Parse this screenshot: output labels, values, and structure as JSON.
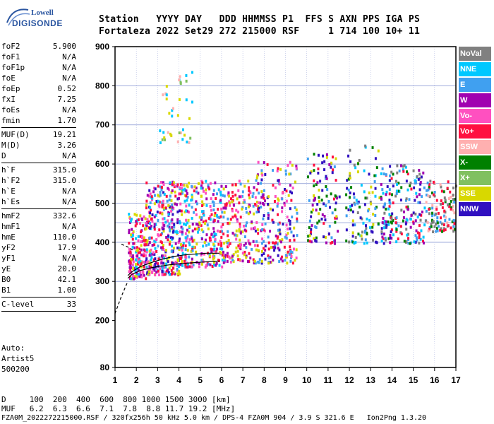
{
  "logo": {
    "line1": "Lowell",
    "line2": "DIGISONDE"
  },
  "header": {
    "row1": "Station   YYYY DAY   DDD HHMMSS P1  FFS S AXN PPS IGA PS",
    "row2": "Fortaleza 2022 Set29 272 215000 RSF     1 714 100 10+ 11"
  },
  "params": [
    {
      "label": "foF2",
      "value": "5.900"
    },
    {
      "label": "foF1",
      "value": "N/A"
    },
    {
      "label": "foF1p",
      "value": "N/A"
    },
    {
      "label": "foE",
      "value": "N/A"
    },
    {
      "label": "foEp",
      "value": "0.52"
    },
    {
      "label": "fxI",
      "value": "7.25"
    },
    {
      "label": "foEs",
      "value": "N/A"
    },
    {
      "label": "fmin",
      "value": "1.70"
    },
    {
      "sep": true
    },
    {
      "label": "MUF(D)",
      "value": "19.21"
    },
    {
      "label": "M(D)",
      "value": "3.26"
    },
    {
      "label": "D",
      "value": "N/A"
    },
    {
      "sep": true
    },
    {
      "label": "h`F",
      "value": "315.0"
    },
    {
      "label": "h`F2",
      "value": "315.0"
    },
    {
      "label": "h`E",
      "value": "N/A"
    },
    {
      "label": "h`Es",
      "value": "N/A"
    },
    {
      "sep": true
    },
    {
      "label": "hmF2",
      "value": "332.6"
    },
    {
      "label": "hmF1",
      "value": "N/A"
    },
    {
      "label": "hmE",
      "value": "110.0"
    },
    {
      "label": "yF2",
      "value": "17.9"
    },
    {
      "label": "yF1",
      "value": "N/A"
    },
    {
      "label": "yE",
      "value": "20.0"
    },
    {
      "label": "B0",
      "value": "42.1"
    },
    {
      "label": "B1",
      "value": "1.00"
    },
    {
      "sep": true
    },
    {
      "label": "C-level",
      "value": "33"
    },
    {
      "sep": true
    }
  ],
  "auto": {
    "line1": "Auto:",
    "line2": "Artist5",
    "line3": "500200"
  },
  "legend": [
    {
      "label": "NoVal",
      "bg": "#808080",
      "fg": "#ffffff"
    },
    {
      "label": "NNE",
      "bg": "#00c8ff",
      "fg": "#ffffff"
    },
    {
      "label": "E",
      "bg": "#40a0f0",
      "fg": "#ffffff"
    },
    {
      "label": "W",
      "bg": "#a000b0",
      "fg": "#ffffff"
    },
    {
      "label": "Vo-",
      "bg": "#ff50c0",
      "fg": "#ffffff"
    },
    {
      "label": "Vo+",
      "bg": "#ff1040",
      "fg": "#ffffff"
    },
    {
      "label": "SSW",
      "bg": "#ffb0b0",
      "fg": "#ffffff"
    },
    {
      "label": "X-",
      "bg": "#008000",
      "fg": "#ffffff"
    },
    {
      "label": "X+",
      "bg": "#80c060",
      "fg": "#ffffff"
    },
    {
      "label": "SSE",
      "bg": "#d8d800",
      "fg": "#ffffff"
    },
    {
      "label": "NNW",
      "bg": "#3010c0",
      "fg": "#ffffff"
    }
  ],
  "footer": {
    "d_row": "D     100  200  400  600  800 1000 1500 3000 [km]",
    "muf_row": "MUF   6.2  6.3  6.6  7.1  7.8  8.8 11.7 19.2 [MHz]",
    "info_row": "FZA0M_2022272215000.RSF / 320fx256h 50 kHz 5.0 km / DPS-4 FZA0M 904 / 3.9 S 321.6 E   Ion2Png 1.3.20"
  },
  "chart_data": {
    "type": "scatter",
    "title": "",
    "xlabel": "",
    "ylabel": "",
    "xlim": [
      1,
      17
    ],
    "ylim": [
      80,
      900
    ],
    "xticks": [
      1,
      2,
      3,
      4,
      5,
      6,
      7,
      8,
      9,
      10,
      11,
      12,
      13,
      14,
      15,
      16,
      17
    ],
    "yticks": [
      80,
      200,
      300,
      400,
      500,
      600,
      700,
      800,
      900
    ],
    "grid": true,
    "grid_y": [
      300,
      400,
      450,
      500,
      550,
      600,
      700,
      800
    ],
    "traces": [
      {
        "name": "lower",
        "style": "solid",
        "x": [
          1.6,
          1.8,
          2.2,
          2.8,
          3.5,
          4.2,
          5.0,
          5.9
        ],
        "y": [
          308,
          318,
          328,
          336,
          342,
          346,
          349,
          352
        ]
      },
      {
        "name": "profile",
        "style": "solid",
        "x": [
          1.6,
          1.8,
          2.2,
          2.8,
          3.3,
          3.8,
          4.3,
          4.8,
          5.3,
          5.9
        ],
        "y": [
          315,
          325,
          338,
          350,
          358,
          364,
          368,
          370,
          372,
          372
        ]
      },
      {
        "name": "extrapolation",
        "style": "dashed",
        "x": [
          1.0,
          1.3,
          1.6
        ],
        "y": [
          218,
          262,
          300
        ]
      },
      {
        "name": "upper",
        "style": "dashed",
        "x": [
          1.3,
          1.6,
          1.9
        ],
        "y": [
          395,
          388,
          378
        ]
      }
    ],
    "clusters": [
      {
        "x": [
          1.6,
          2.4
        ],
        "y": [
          310,
          480
        ],
        "colors": [
          "#ff1040",
          "#ff50c0",
          "#a000b0",
          "#00c8ff",
          "#d8d800"
        ],
        "n": 160
      },
      {
        "x": [
          2.4,
          4.0
        ],
        "y": [
          320,
          560
        ],
        "colors": [
          "#a000b0",
          "#ff50c0",
          "#ff1040",
          "#00c8ff",
          "#40a0f0",
          "#d8d800",
          "#3010c0"
        ],
        "n": 340
      },
      {
        "x": [
          4.0,
          6.0
        ],
        "y": [
          340,
          560
        ],
        "colors": [
          "#a000b0",
          "#ff50c0",
          "#ff1040",
          "#00c8ff",
          "#40a0f0",
          "#d8d800"
        ],
        "n": 300
      },
      {
        "x": [
          6.0,
          7.5
        ],
        "y": [
          350,
          560
        ],
        "colors": [
          "#a000b0",
          "#ff1040",
          "#ff50c0",
          "#d8d800",
          "#40a0f0"
        ],
        "n": 170
      },
      {
        "x": [
          7.5,
          9.5
        ],
        "y": [
          350,
          610
        ],
        "colors": [
          "#3010c0",
          "#a000b0",
          "#ff1040",
          "#ff50c0",
          "#d8d800",
          "#40a0f0"
        ],
        "n": 220
      },
      {
        "x": [
          10.0,
          11.5
        ],
        "y": [
          400,
          630
        ],
        "colors": [
          "#3010c0",
          "#40a0f0",
          "#ff1040",
          "#d8d800",
          "#008000",
          "#a000b0"
        ],
        "n": 110
      },
      {
        "x": [
          11.8,
          13.4
        ],
        "y": [
          400,
          650
        ],
        "colors": [
          "#40a0f0",
          "#d8d800",
          "#008000",
          "#3010c0",
          "#00c8ff",
          "#808080"
        ],
        "n": 110
      },
      {
        "x": [
          13.4,
          15.5
        ],
        "y": [
          400,
          600
        ],
        "colors": [
          "#40a0f0",
          "#00c8ff",
          "#3010c0",
          "#ff1040",
          "#008000",
          "#808080",
          "#a000b0"
        ],
        "n": 200
      },
      {
        "x": [
          15.5,
          17.0
        ],
        "y": [
          430,
          560
        ],
        "colors": [
          "#40a0f0",
          "#808080",
          "#ff1040",
          "#ffb0b0",
          "#008000"
        ],
        "n": 120
      },
      {
        "x": [
          3.0,
          4.6
        ],
        "y": [
          650,
          840
        ],
        "colors": [
          "#d8d800",
          "#ffb0b0",
          "#00c8ff",
          "#80c060"
        ],
        "n": 40
      }
    ]
  }
}
